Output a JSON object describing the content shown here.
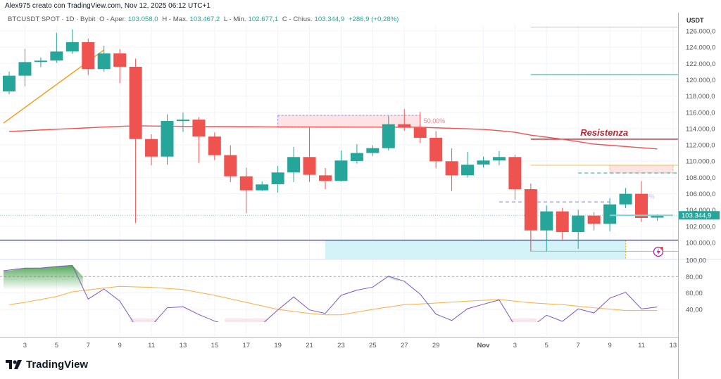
{
  "credit": "Alex975 creato con TradingView.com, Nov 12, 2025 06:12 UTC+1",
  "legend": {
    "symbol": "BTCUSDT SPOT · 1D · Bybit",
    "open_label": "O - Aper.",
    "open": "103.058,0",
    "high_label": "H - Max.",
    "high": "103.467,2",
    "low_label": "L - Min.",
    "low": "102.677,1",
    "close_label": "C - Chius.",
    "close": "103.344,9",
    "change": "+286,9 (+0,28%)"
  },
  "brand": "TradingView",
  "colors": {
    "up": "#26a69a",
    "down": "#ef5350",
    "ma": "#ef5350",
    "rsi": "#7e57c2",
    "rsi_ma": "#f5b041",
    "support": "#2a3fbf",
    "resistance": "#b22833"
  },
  "chart_data": [
    {
      "type": "candlestick",
      "currency_label": "USDT",
      "ylim": [
        97500,
        127000
      ],
      "y_ticks": [
        "126.000,0",
        "124.000,0",
        "122.000,0",
        "120.000,0",
        "118.000,0",
        "116.000,0",
        "114.000,0",
        "112.000,0",
        "110.000,0",
        "108.000,0",
        "106.000,0",
        "104.000,0",
        "102.000,0",
        "100.000,0"
      ],
      "y_tick_values": [
        126000,
        124000,
        122000,
        120000,
        118000,
        116000,
        114000,
        112000,
        110000,
        108000,
        106000,
        104000,
        102000,
        100000
      ],
      "last_price_label": "103.344,9",
      "last_price": 103344.9,
      "start_date": "2025-10-02",
      "x_ticks": [
        [
          "2025-10-03",
          "3"
        ],
        [
          "2025-10-05",
          "5"
        ],
        [
          "2025-10-07",
          "7"
        ],
        [
          "2025-10-09",
          "9"
        ],
        [
          "2025-10-11",
          "11"
        ],
        [
          "2025-10-13",
          "13"
        ],
        [
          "2025-10-15",
          "15"
        ],
        [
          "2025-10-17",
          "17"
        ],
        [
          "2025-10-19",
          "19"
        ],
        [
          "2025-10-21",
          "21"
        ],
        [
          "2025-10-23",
          "23"
        ],
        [
          "2025-10-25",
          "25"
        ],
        [
          "2025-10-27",
          "27"
        ],
        [
          "2025-10-29",
          "29"
        ],
        [
          "2025-11-01",
          "Nov"
        ],
        [
          "2025-11-03",
          "3"
        ],
        [
          "2025-11-05",
          "5"
        ],
        [
          "2025-11-07",
          "7"
        ],
        [
          "2025-11-09",
          "9"
        ],
        [
          "2025-11-11",
          "11"
        ],
        [
          "2025-11-13",
          "13"
        ]
      ],
      "ohlc": [
        [
          118570,
          121000,
          118200,
          120500
        ],
        [
          120500,
          123800,
          119200,
          122170
        ],
        [
          122200,
          122750,
          121550,
          122350
        ],
        [
          122370,
          125770,
          122090,
          123470
        ],
        [
          123470,
          126200,
          123170,
          124620
        ],
        [
          124620,
          125050,
          120580,
          121310
        ],
        [
          121310,
          124190,
          121000,
          123240
        ],
        [
          123240,
          123750,
          119580,
          121600
        ],
        [
          121600,
          122600,
          102400,
          112720
        ],
        [
          112720,
          113300,
          109500,
          110560
        ],
        [
          110560,
          115750,
          109560,
          114940
        ],
        [
          114940,
          115980,
          113590,
          115100
        ],
        [
          115100,
          115400,
          109780,
          113020
        ],
        [
          113020,
          113530,
          110130,
          110740
        ],
        [
          110740,
          111950,
          107430,
          108140
        ],
        [
          108140,
          109200,
          103600,
          106420
        ],
        [
          106420,
          107500,
          106330,
          107140
        ],
        [
          107170,
          109410,
          106130,
          108610
        ],
        [
          108610,
          111750,
          107430,
          110510
        ],
        [
          110510,
          114110,
          107450,
          108320
        ],
        [
          108260,
          109150,
          106560,
          107570
        ],
        [
          107570,
          111310,
          107500,
          110080
        ],
        [
          110020,
          112090,
          109700,
          111000
        ],
        [
          111000,
          111950,
          110650,
          111600
        ],
        [
          111600,
          115550,
          111310,
          114540
        ],
        [
          114540,
          116400,
          113730,
          114110
        ],
        [
          114110,
          116040,
          112240,
          112870
        ],
        [
          112870,
          113670,
          109120,
          109990
        ],
        [
          109990,
          111570,
          106330,
          108260
        ],
        [
          108260,
          111140,
          108000,
          109560
        ],
        [
          109590,
          110560,
          109220,
          110080
        ],
        [
          110080,
          111230,
          109500,
          110510
        ],
        [
          110510,
          110800,
          105270,
          106560
        ],
        [
          106560,
          107250,
          98930,
          101490
        ],
        [
          101490,
          104550,
          98930,
          103830
        ],
        [
          103830,
          104260,
          100370,
          101290
        ],
        [
          101290,
          104030,
          99220,
          103310
        ],
        [
          103310,
          103740,
          101490,
          102300
        ],
        [
          102300,
          105470,
          101380,
          104690
        ],
        [
          104690,
          106700,
          104230,
          105990
        ],
        [
          105990,
          107540,
          102530,
          103020
        ],
        [
          103058,
          103467.2,
          102677.1,
          103344.9
        ]
      ],
      "moving_average": [
        113650,
        113740,
        113830,
        113920,
        114010,
        114100,
        114190,
        114280,
        114340,
        114320,
        114300,
        114280,
        114260,
        114250,
        114240,
        114230,
        114220,
        114210,
        114200,
        114200,
        114190,
        114190,
        114180,
        114180,
        114170,
        114170,
        114170,
        114100,
        114040,
        113970,
        113900,
        113750,
        113550,
        113200,
        112950,
        112700,
        112400,
        112100,
        111950,
        111800,
        111650,
        111500
      ],
      "drawings": {
        "trendline": {
          "from": [
            "2025-10-02",
            114680
          ],
          "to": [
            "2025-10-08",
            123670
          ]
        },
        "support_line": 100300,
        "resistance": {
          "price": 112700,
          "from": "2025-11-04",
          "label": "Resistenza"
        },
        "level_gray": {
          "price": 126480,
          "from": "2025-11-04"
        },
        "level_green": {
          "price": 120640,
          "from": "2025-11-04"
        },
        "level_yellow": {
          "price": 109500,
          "from": "2025-11-04"
        },
        "level_green_dashed": {
          "price": 108550,
          "from": "2025-11-07"
        },
        "level_purple_dashed": {
          "price": 105000,
          "from": "2025-11-02",
          "to": "2025-11-09"
        },
        "level_gray_low": {
          "price": 98930,
          "from": "2025-11-04"
        },
        "teal_line": {
          "price": 103345,
          "from": "2025-11-09",
          "to": "2025-11-13"
        },
        "fib_box": {
          "from": "2025-10-19",
          "to": "2025-10-28",
          "low": 114160,
          "high": 115630,
          "label": "50,00%"
        },
        "pink_box_2": {
          "from": "2025-11-09",
          "to": "2025-11-13",
          "low": 108550,
          "high": 109500,
          "label": "0,00%"
        },
        "cyan_box": {
          "from": "2025-10-22",
          "to": "2025-11-10",
          "low": 98000,
          "high": 100300
        }
      }
    },
    {
      "type": "line",
      "ylim": [
        24,
        100
      ],
      "y_ticks": [
        "100,00",
        "80,00",
        "60,00",
        "40,00"
      ],
      "y_tick_values": [
        100,
        80,
        60,
        40
      ],
      "overbought": 80,
      "rsi": [
        87.1,
        90.3,
        90.5,
        92.3,
        93.7,
        52.5,
        64.8,
        50,
        20,
        20,
        41.9,
        43.1,
        33.6,
        25.6,
        20,
        18,
        22,
        39.3,
        55.1,
        39.3,
        35,
        57.1,
        63.4,
        67.1,
        80.5,
        74.2,
        58.5,
        34.2,
        26.4,
        40.8,
        46.2,
        51.4,
        20,
        18,
        32.8,
        25.3,
        40.5,
        35.6,
        53.6,
        60.8,
        40.5,
        42.8
      ],
      "rsi_ma": [
        45.7,
        48.5,
        52,
        55.6,
        61.4,
        63.7,
        66,
        68,
        67.4,
        66.8,
        65.5,
        64.2,
        60.6,
        57.1,
        52.8,
        48.5,
        44.2,
        39.9,
        37.4,
        35,
        33.3,
        33.3,
        36.6,
        39.9,
        42.8,
        45.7,
        46.6,
        47.6,
        48.8,
        50,
        51,
        52,
        50,
        48,
        46.8,
        45.7,
        43.8,
        41.9,
        40.2,
        38.5,
        38.5,
        38.5
      ]
    }
  ]
}
